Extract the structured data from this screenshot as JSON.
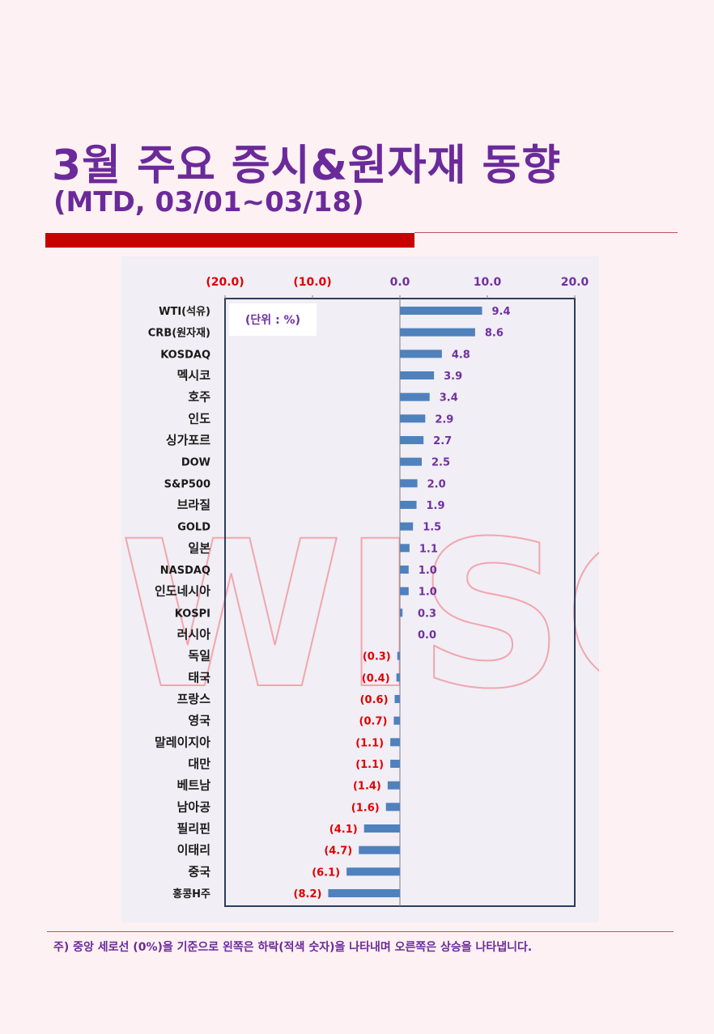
{
  "header": {
    "title": "3월 주요 증시&원자재 동향",
    "subtitle": "(MTD, 03/01~03/18)"
  },
  "footer": {
    "note": "주) 중앙 세로선 (0%)을 기준으로 왼쪽은 하락(적색 숫자)을 나타내며 오른쪽은 상승을 나타냅니다."
  },
  "colors": {
    "title": "#6b2a9a",
    "bar": "#4f81bd",
    "positive_label": "#7030a0",
    "negative_label": "#e00000",
    "accent_bar": "#c80000"
  },
  "chart_data": {
    "type": "bar",
    "orientation": "horizontal",
    "unit_label": "(단위 : %)",
    "watermark": "WISC",
    "xlim": [
      -20,
      20
    ],
    "x_ticks": [
      -20,
      -10,
      0,
      10,
      20
    ],
    "x_tick_labels": [
      "(20.0)",
      "(10.0)",
      "0.0",
      "10.0",
      "20.0"
    ],
    "categories": [
      "WTI(석유)",
      "CRB(원자재)",
      "KOSDAQ",
      "멕시코",
      "호주",
      "인도",
      "싱가포르",
      "DOW",
      "S&P500",
      "브라질",
      "GOLD",
      "일본",
      "NASDAQ",
      "인도네시아",
      "KOSPI",
      "러시아",
      "독일",
      "태국",
      "프랑스",
      "영국",
      "말레이지아",
      "대만",
      "베트남",
      "남아공",
      "필리핀",
      "이태리",
      "중국",
      "홍콩H주"
    ],
    "values": [
      9.4,
      8.6,
      4.8,
      3.9,
      3.4,
      2.9,
      2.7,
      2.5,
      2.0,
      1.9,
      1.5,
      1.1,
      1.0,
      1.0,
      0.3,
      0.0,
      -0.3,
      -0.4,
      -0.6,
      -0.7,
      -1.1,
      -1.1,
      -1.4,
      -1.6,
      -4.1,
      -4.7,
      -6.1,
      -8.2
    ],
    "value_labels": [
      "9.4",
      "8.6",
      "4.8",
      "3.9",
      "3.4",
      "2.9",
      "2.7",
      "2.5",
      "2.0",
      "1.9",
      "1.5",
      "1.1",
      "1.0",
      "1.0",
      "0.3",
      "0.0",
      "(0.3)",
      "(0.4)",
      "(0.6)",
      "(0.7)",
      "(1.1)",
      "(1.1)",
      "(1.4)",
      "(1.6)",
      "(4.1)",
      "(4.7)",
      "(6.1)",
      "(8.2)"
    ]
  }
}
